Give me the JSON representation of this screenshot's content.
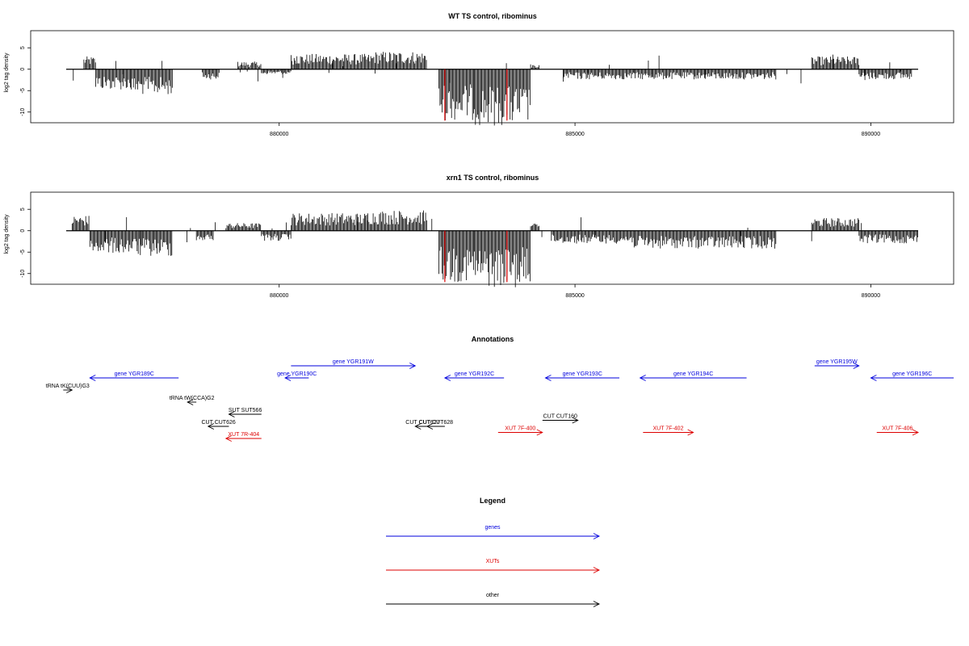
{
  "chart_data": [
    {
      "type": "bar",
      "title": "WT TS control, ribominus",
      "ylabel": "log2 tag density",
      "xticks": [
        "880000",
        "885000",
        "890000"
      ],
      "yticks": [
        "5",
        "0",
        "-5",
        "-10"
      ],
      "xlim": [
        875800,
        891400
      ],
      "ylim": [
        -12.5,
        9
      ],
      "red_line_positions": [
        882800,
        883850
      ],
      "red_line_value": -12,
      "bar_color": "#000000",
      "highlight_color": "#dd0000",
      "signal_regions": [
        {
          "start": 876700,
          "end": 876900,
          "value": 2.5
        },
        {
          "start": 876900,
          "end": 877500,
          "value": -4
        },
        {
          "start": 877500,
          "end": 878200,
          "value": -5
        },
        {
          "start": 878700,
          "end": 879000,
          "value": -2
        },
        {
          "start": 879300,
          "end": 879700,
          "value": 1.5
        },
        {
          "start": 879700,
          "end": 880200,
          "value": -1
        },
        {
          "start": 880200,
          "end": 881600,
          "value": 3
        },
        {
          "start": 881600,
          "end": 882500,
          "value": 3.5
        },
        {
          "start": 882700,
          "end": 883300,
          "value": -10
        },
        {
          "start": 883300,
          "end": 884250,
          "value": -11
        },
        {
          "start": 884250,
          "end": 884400,
          "value": 1
        },
        {
          "start": 884800,
          "end": 886000,
          "value": -2
        },
        {
          "start": 886000,
          "end": 888400,
          "value": -2
        },
        {
          "start": 889000,
          "end": 889800,
          "value": 2.5
        },
        {
          "start": 889800,
          "end": 890700,
          "value": -2
        }
      ]
    },
    {
      "type": "bar",
      "title": "xrn1 TS control, ribominus",
      "ylabel": "log2 tag density",
      "xticks": [
        "880000",
        "885000",
        "890000"
      ],
      "yticks": [
        "5",
        "0",
        "-5",
        "-10"
      ],
      "xlim": [
        875800,
        891400
      ],
      "ylim": [
        -12.5,
        9
      ],
      "red_line_positions": [
        882800,
        883850
      ],
      "red_line_value": -12,
      "bar_color": "#000000",
      "highlight_color": "#dd0000",
      "signal_regions": [
        {
          "start": 876500,
          "end": 876800,
          "value": 3
        },
        {
          "start": 876800,
          "end": 877600,
          "value": -4.5
        },
        {
          "start": 877600,
          "end": 878200,
          "value": -5
        },
        {
          "start": 878600,
          "end": 878900,
          "value": -2
        },
        {
          "start": 879100,
          "end": 879700,
          "value": 1.5
        },
        {
          "start": 879700,
          "end": 880200,
          "value": -2
        },
        {
          "start": 880200,
          "end": 881500,
          "value": 3.5
        },
        {
          "start": 881500,
          "end": 882500,
          "value": 4
        },
        {
          "start": 882700,
          "end": 883300,
          "value": -10
        },
        {
          "start": 883300,
          "end": 884250,
          "value": -11
        },
        {
          "start": 884250,
          "end": 884400,
          "value": 1.5
        },
        {
          "start": 884600,
          "end": 886000,
          "value": -2.5
        },
        {
          "start": 886000,
          "end": 888400,
          "value": -3.5
        },
        {
          "start": 889000,
          "end": 889800,
          "value": 2.5
        },
        {
          "start": 889800,
          "end": 890800,
          "value": -2.5
        }
      ]
    }
  ],
  "annotations": {
    "title": "Annotations",
    "xlim": [
      875800,
      891400
    ],
    "items": [
      {
        "label": "gene YGR189C",
        "start": 876800,
        "end": 878300,
        "dir": "left",
        "color": "#0000dd",
        "row": 1
      },
      {
        "label": "tRNA tK(CUU)G3",
        "start": 876350,
        "end": 876500,
        "dir": "right",
        "color": "#000000",
        "row": 2
      },
      {
        "label": "tRNA tW(CCA)G2",
        "start": 878450,
        "end": 878600,
        "dir": "left",
        "color": "#000000",
        "row": 3
      },
      {
        "label": "gene YGR190C",
        "start": 880100,
        "end": 880500,
        "dir": "left",
        "color": "#0000dd",
        "row": 1
      },
      {
        "label": "gene YGR191W",
        "start": 880200,
        "end": 882300,
        "dir": "right",
        "color": "#0000dd",
        "row": 0
      },
      {
        "label": "gene YGR192C",
        "start": 882800,
        "end": 883800,
        "dir": "left",
        "color": "#0000dd",
        "row": 1
      },
      {
        "label": "gene YGR193C",
        "start": 884500,
        "end": 885750,
        "dir": "left",
        "color": "#0000dd",
        "row": 1
      },
      {
        "label": "gene YGR194C",
        "start": 886100,
        "end": 887900,
        "dir": "left",
        "color": "#0000dd",
        "row": 1
      },
      {
        "label": "gene YGR195W",
        "start": 889050,
        "end": 889800,
        "dir": "right",
        "color": "#0000dd",
        "row": 0
      },
      {
        "label": "gene YGR196C",
        "start": 890000,
        "end": 891400,
        "dir": "left",
        "color": "#0000dd",
        "row": 1
      },
      {
        "label": "SUT SUT566",
        "start": 879150,
        "end": 879700,
        "dir": "left",
        "color": "#000000",
        "row": 4
      },
      {
        "label": "CUT CUT626",
        "start": 878800,
        "end": 879150,
        "dir": "left",
        "color": "#000000",
        "row": 5
      },
      {
        "label": "CUT CUT627",
        "start": 882300,
        "end": 882550,
        "dir": "left",
        "color": "#000000",
        "row": 5
      },
      {
        "label": "CUT CUT628",
        "start": 882500,
        "end": 882800,
        "dir": "left",
        "color": "#000000",
        "row": 5
      },
      {
        "label": "CUT CUT160",
        "start": 884450,
        "end": 885050,
        "dir": "right",
        "color": "#000000",
        "row": 4.5
      },
      {
        "label": "XUT 7R-404",
        "start": 879100,
        "end": 879700,
        "dir": "left",
        "color": "#dd0000",
        "row": 6
      },
      {
        "label": "XUT 7F-400",
        "start": 883700,
        "end": 884450,
        "dir": "right",
        "color": "#dd0000",
        "row": 5.5
      },
      {
        "label": "XUT 7F-402",
        "start": 886150,
        "end": 887000,
        "dir": "right",
        "color": "#dd0000",
        "row": 5.5
      },
      {
        "label": "XUT 7F-406",
        "start": 890100,
        "end": 890800,
        "dir": "right",
        "color": "#dd0000",
        "row": 5.5
      }
    ]
  },
  "legend": {
    "title": "Legend",
    "items": [
      {
        "label": "genes",
        "color": "#0000dd"
      },
      {
        "label": "XUTs",
        "color": "#dd0000"
      },
      {
        "label": "other",
        "color": "#000000"
      }
    ]
  }
}
